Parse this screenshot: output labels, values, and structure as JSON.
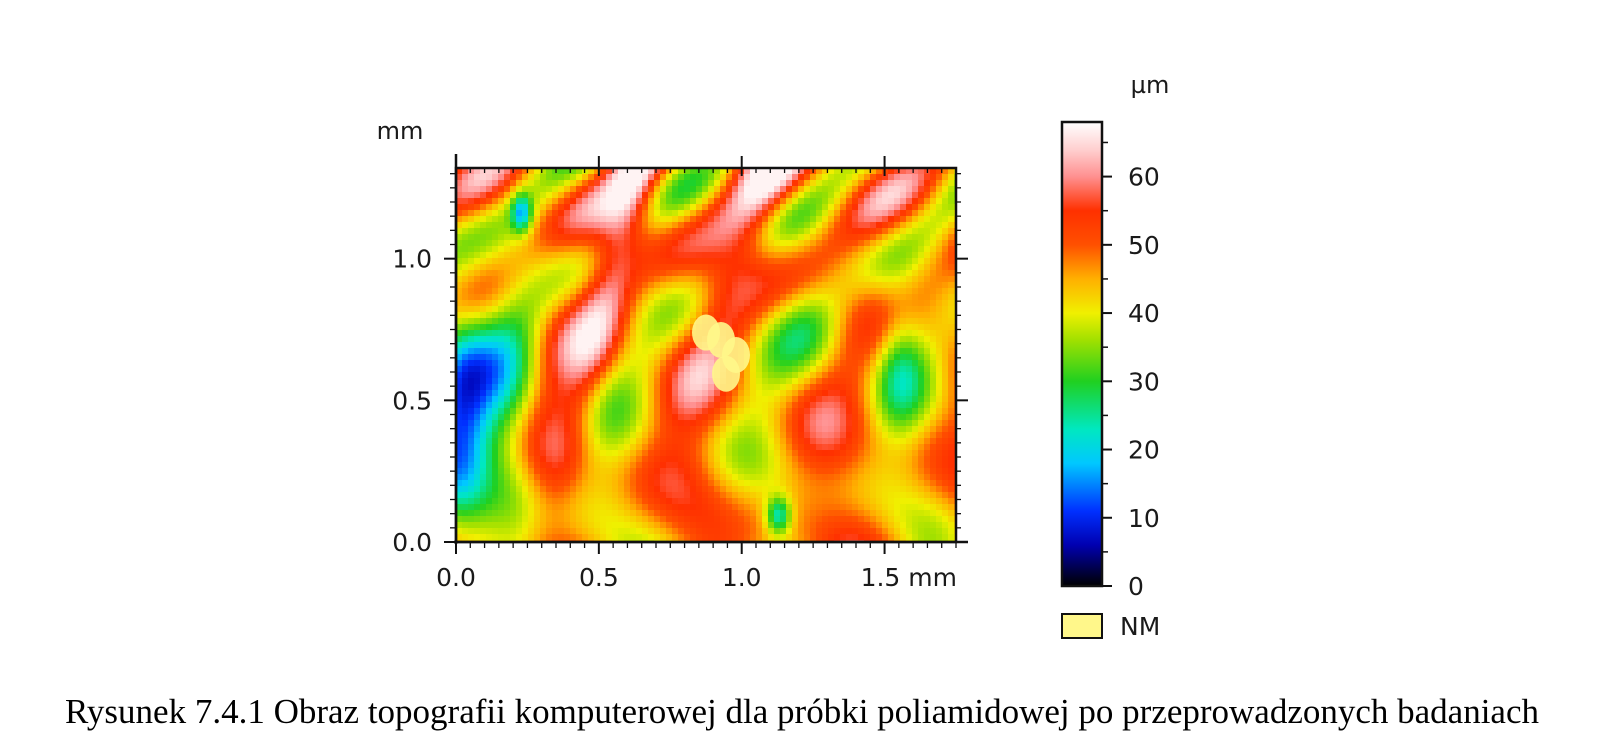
{
  "caption": "Rysunek 7.4.1 Obraz topografii komputerowej dla próbki poliamidowej po przeprowadzonych badaniach",
  "chart_data": {
    "type": "heatmap",
    "y_unit": "mm",
    "x_unit": "mm",
    "xlim": [
      0.0,
      1.75
    ],
    "ylim": [
      0.0,
      1.32
    ],
    "x_ticks": [
      {
        "value": 0.0,
        "label": "0.0"
      },
      {
        "value": 0.5,
        "label": "0.5"
      },
      {
        "value": 1.0,
        "label": "1.0"
      },
      {
        "value": 1.5,
        "label": "1.5 mm"
      }
    ],
    "y_ticks": [
      {
        "value": 0.0,
        "label": "0.0"
      },
      {
        "value": 0.5,
        "label": "0.5"
      },
      {
        "value": 1.0,
        "label": "1.0"
      }
    ],
    "colorbar": {
      "unit": "µm",
      "range": [
        0,
        68
      ],
      "ticks": [
        0,
        10,
        20,
        30,
        40,
        50,
        60
      ],
      "colors": [
        {
          "value": 0,
          "color": "#000000"
        },
        {
          "value": 6,
          "color": "#0000b0"
        },
        {
          "value": 11,
          "color": "#0030ff"
        },
        {
          "value": 18,
          "color": "#00c8ff"
        },
        {
          "value": 23,
          "color": "#00e8c0"
        },
        {
          "value": 30,
          "color": "#20d020"
        },
        {
          "value": 36,
          "color": "#a0e000"
        },
        {
          "value": 40,
          "color": "#f0f000"
        },
        {
          "value": 45,
          "color": "#ffb000"
        },
        {
          "value": 50,
          "color": "#ff5000"
        },
        {
          "value": 55,
          "color": "#ff3000"
        },
        {
          "value": 60,
          "color": "#ff9090"
        },
        {
          "value": 64,
          "color": "#ffd0d0"
        },
        {
          "value": 68,
          "color": "#ffffff"
        }
      ]
    },
    "not_measured": {
      "label": "NM",
      "color": "#fff78a"
    }
  }
}
